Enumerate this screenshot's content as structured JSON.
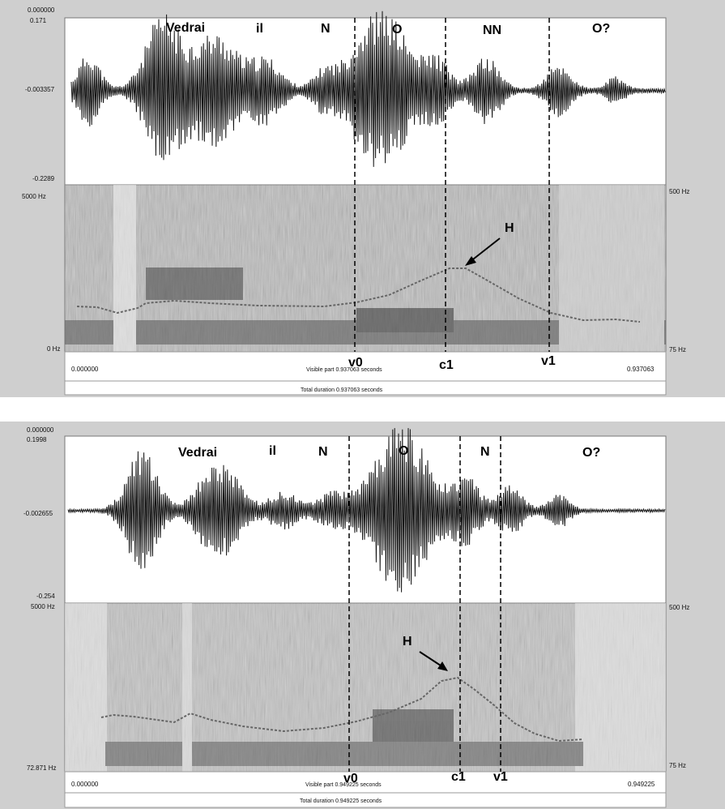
{
  "panels": [
    {
      "time_start_top": "0.000000",
      "amp_max": "0.171",
      "amp_mid": "-0.003357",
      "amp_min": "-0.2289",
      "freq_top_left": "5000 Hz",
      "freq_bottom_left": "0 Hz",
      "pitch_top_right": "500 Hz",
      "pitch_bottom_right": "75 Hz",
      "time_left": "0.000000",
      "time_right": "0.937063",
      "visible_part": "Visible part 0.937063 seconds",
      "total_duration": "Total duration 0.937063 seconds",
      "segments": [
        "Vedrai",
        "il",
        "N",
        "O",
        "NN",
        "O?"
      ],
      "landmarks": [
        "v0",
        "c1",
        "v1"
      ],
      "peak_label": "H"
    },
    {
      "time_start_top": "0.000000",
      "amp_max": "0.1998",
      "amp_mid": "-0.002655",
      "amp_min": "-0.254",
      "freq_top_left": "5000 Hz",
      "freq_bottom_left": "72.871 Hz",
      "pitch_top_right": "500 Hz",
      "pitch_bottom_right": "75 Hz",
      "time_left": "0.000000",
      "time_right": "0.949225",
      "visible_part": "Visible part 0.949225 seconds",
      "total_duration": "Total duration 0.949225 seconds",
      "segments": [
        "Vedrai",
        "il",
        "N",
        "O",
        "N",
        "O?"
      ],
      "landmarks": [
        "v0",
        "c1",
        "v1"
      ],
      "peak_label": "H"
    }
  ],
  "colors": {
    "frame_gray": "#cfcfcf",
    "spectrogram_bg": "#b6b6b6",
    "waveform": "#111111",
    "pitch_track": "#555555"
  }
}
